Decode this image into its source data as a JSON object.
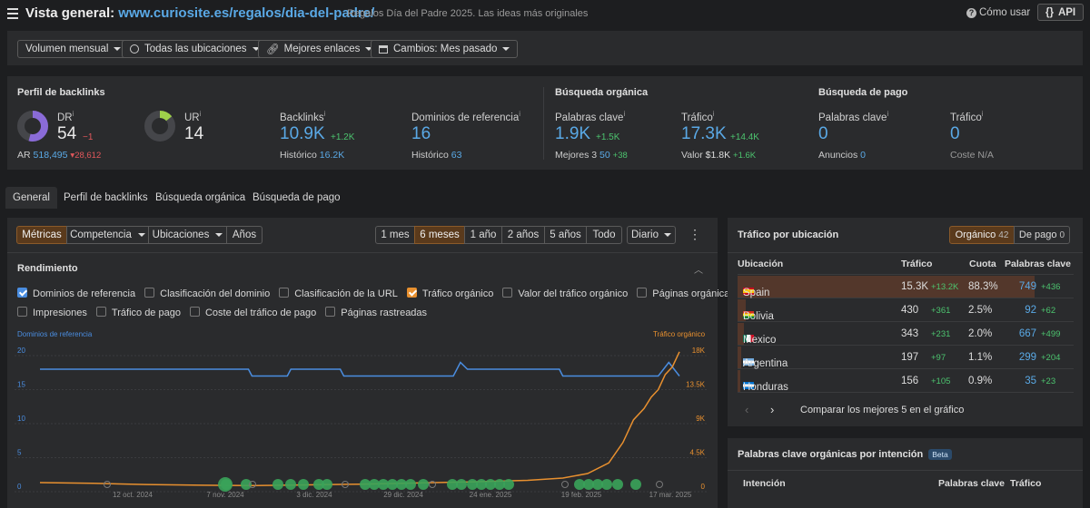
{
  "header": {
    "title_prefix": "Vista general:",
    "url": "www.curiosite.es/regalos/dia-del-padre/",
    "page_title": "Regalos Día del Padre 2025. Las ideas más originales",
    "how_to": "Cómo usar",
    "api": "API"
  },
  "filters": {
    "volume": "Volumen mensual",
    "locations": "Todas las ubicaciones",
    "links": "Mejores enlaces",
    "changes": "Cambios: Mes pasado"
  },
  "summary": {
    "backlink_profile_title": "Perfil de backlinks",
    "dr_label": "DR",
    "dr_value": "54",
    "dr_change": "−1",
    "ar_label": "AR",
    "ar_value": "518,495",
    "ar_change": "28,612",
    "ur_label": "UR",
    "ur_value": "14",
    "backlinks_label": "Backlinks",
    "backlinks_value": "10.9K",
    "backlinks_change": "+1.2K",
    "backlinks_hist_label": "Histórico",
    "backlinks_hist_value": "16.2K",
    "refdomains_label": "Dominios de referencia",
    "refdomains_value": "16",
    "refdomains_hist_label": "Histórico",
    "refdomains_hist_value": "63",
    "organic_title": "Búsqueda orgánica",
    "keywords_label": "Palabras clave",
    "keywords_value": "1.9K",
    "keywords_change": "+1.5K",
    "top3_label": "Mejores 3",
    "top3_value": "50",
    "top3_change": "+38",
    "traffic_label": "Tráfico",
    "traffic_value": "17.3K",
    "traffic_change": "+14.4K",
    "value_label": "Valor",
    "value_value": "$1.8K",
    "value_change": "+1.6K",
    "paid_title": "Búsqueda de pago",
    "paid_keywords_label": "Palabras clave",
    "paid_keywords_value": "0",
    "ads_label": "Anuncios",
    "ads_value": "0",
    "paid_traffic_label": "Tráfico",
    "paid_traffic_value": "0",
    "cost_label": "Coste",
    "cost_value": "N/A",
    "dr_fraction": 0.54,
    "ur_fraction": 0.14
  },
  "tabs": [
    "General",
    "Perfil de backlinks",
    "Búsqueda orgánica",
    "Búsqueda de pago"
  ],
  "chart_toolbar": {
    "metrics": "Métricas",
    "competition": "Competencia",
    "locations": "Ubicaciones",
    "years": "Años",
    "ranges": [
      "1 mes",
      "6 meses",
      "1 año",
      "2 años",
      "5 años",
      "Todo"
    ],
    "interval": "Diario"
  },
  "performance": {
    "title": "Rendimiento",
    "checks": [
      {
        "label": "Dominios de referencia",
        "state": "blue"
      },
      {
        "label": "Clasificación del dominio",
        "state": "off"
      },
      {
        "label": "Clasificación de la URL",
        "state": "off"
      },
      {
        "label": "Tráfico orgánico",
        "state": "orange"
      },
      {
        "label": "Valor del tráfico orgánico",
        "state": "off"
      },
      {
        "label": "Páginas orgánicas",
        "state": "off"
      },
      {
        "label": "Impresiones",
        "state": "off"
      },
      {
        "label": "Tráfico de pago",
        "state": "off"
      },
      {
        "label": "Coste del tráfico de pago",
        "state": "off"
      },
      {
        "label": "Páginas rastreadas",
        "state": "off"
      }
    ]
  },
  "chart_data": {
    "type": "line",
    "left_axis_label": "Dominios de referencia",
    "right_axis_label": "Tráfico orgánico",
    "left_ticks": [
      "20",
      "15",
      "10",
      "5",
      "0"
    ],
    "right_ticks": [
      "18K",
      "13.5K",
      "9K",
      "4.5K",
      "0"
    ],
    "ylim_left": [
      0,
      20
    ],
    "ylim_right": [
      0,
      18000
    ],
    "x_ticks": [
      "12 oct. 2024",
      "7 nov. 2024",
      "3 dic. 2024",
      "29 dic. 2024",
      "24 ene. 2025",
      "19 feb. 2025",
      "17 mar. 2025"
    ],
    "series": [
      {
        "name": "Dominios de referencia",
        "color": "#4a8de0",
        "x": [
          "2024-09-20",
          "2024-11-18",
          "2024-11-19",
          "2024-11-29",
          "2024-11-30",
          "2024-12-14",
          "2024-12-15",
          "2025-01-15",
          "2025-01-17",
          "2025-01-19",
          "2025-02-14",
          "2025-02-15",
          "2025-03-14",
          "2025-03-17",
          "2025-03-20"
        ],
        "values": [
          18,
          18,
          17,
          17,
          18,
          18,
          17,
          17,
          19,
          18,
          18,
          17,
          17,
          19,
          17
        ]
      },
      {
        "name": "Tráfico orgánico",
        "color": "#e8902f",
        "x": [
          "2024-09-20",
          "2024-10-05",
          "2024-10-20",
          "2024-11-05",
          "2024-11-20",
          "2024-12-05",
          "2024-12-20",
          "2025-01-05",
          "2025-01-20",
          "2025-02-05",
          "2025-02-15",
          "2025-02-22",
          "2025-02-28",
          "2025-03-04",
          "2025-03-07",
          "2025-03-10",
          "2025-03-12",
          "2025-03-14",
          "2025-03-16",
          "2025-03-18",
          "2025-03-20"
        ],
        "values": [
          1200,
          1100,
          950,
          850,
          800,
          900,
          1000,
          1150,
          1300,
          1500,
          1800,
          2400,
          3800,
          6500,
          9500,
          11000,
          12500,
          13500,
          15500,
          16500,
          18500
        ]
      }
    ],
    "event_markers": 28
  },
  "traffic_by_location": {
    "title": "Tráfico por ubicación",
    "tab_organic": "Orgánico",
    "tab_organic_count": "42",
    "tab_paid": "De pago",
    "tab_paid_count": "0",
    "columns": [
      "Ubicación",
      "Tráfico",
      "Cuota",
      "Palabras clave"
    ],
    "rows": [
      {
        "country": "Spain",
        "traffic": "15.3K",
        "traffic_change": "+13.2K",
        "share": "88.3%",
        "keywords": "749",
        "kw_change": "+436",
        "share_fraction": 0.883
      },
      {
        "country": "Bolivia",
        "traffic": "430",
        "traffic_change": "+361",
        "share": "2.5%",
        "keywords": "92",
        "kw_change": "+62",
        "share_fraction": 0.025
      },
      {
        "country": "Mexico",
        "traffic": "343",
        "traffic_change": "+231",
        "share": "2.0%",
        "keywords": "667",
        "kw_change": "+499",
        "share_fraction": 0.02
      },
      {
        "country": "Argentina",
        "traffic": "197",
        "traffic_change": "+97",
        "share": "1.1%",
        "keywords": "299",
        "kw_change": "+204",
        "share_fraction": 0.011
      },
      {
        "country": "Honduras",
        "traffic": "156",
        "traffic_change": "+105",
        "share": "0.9%",
        "keywords": "35",
        "kw_change": "+23",
        "share_fraction": 0.009
      }
    ],
    "compare_label": "Comparar los mejores 5 en el gráfico"
  },
  "intent": {
    "title": "Palabras clave orgánicas por intención",
    "beta": "Beta",
    "columns": [
      "Intención",
      "Palabras clave",
      "Tráfico"
    ]
  }
}
